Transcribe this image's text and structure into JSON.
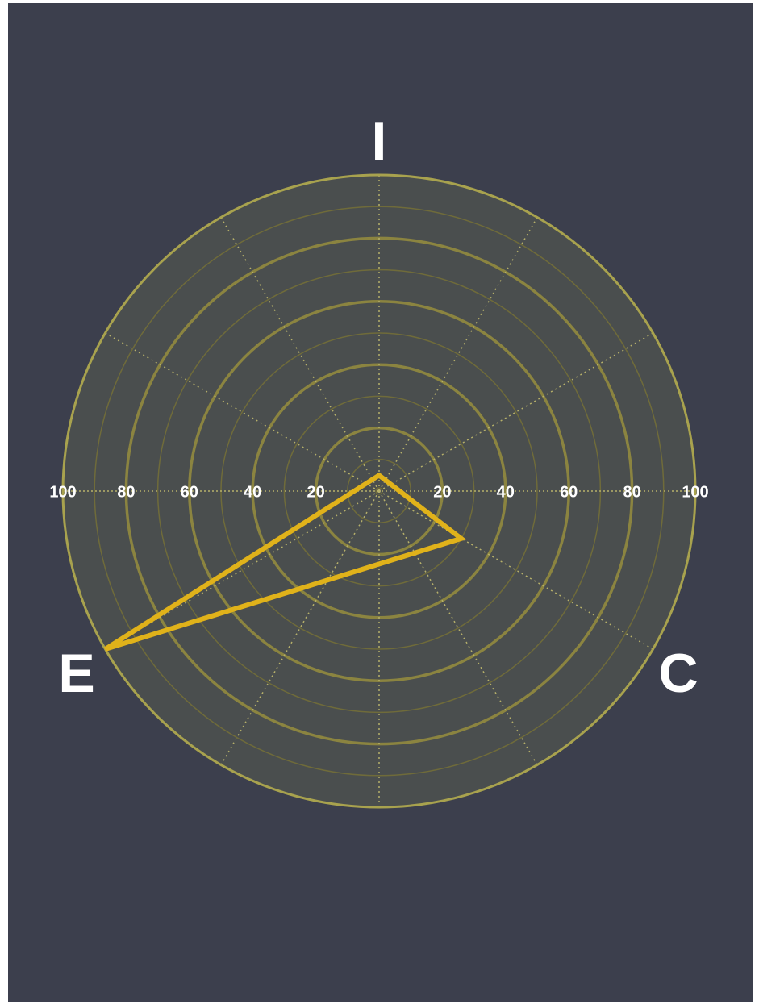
{
  "chart_data": {
    "type": "radar",
    "axes": [
      "I",
      "C",
      "E"
    ],
    "series": [
      {
        "values": [
          5,
          30,
          100
        ]
      }
    ],
    "rlim": [
      0,
      100
    ],
    "tick_labels_left": [
      "100",
      "80",
      "60",
      "40",
      "20"
    ],
    "tick_labels_right": [
      "20",
      "40",
      "60",
      "80",
      "100"
    ],
    "grid": true,
    "colors": {
      "background": "#3c3f4d",
      "plot_fill": "#4a4e4e",
      "grid_major": "#8b8440",
      "grid_minor": "#6f6b3a",
      "outer_ring": "#a8a24e",
      "spoke": "#b6b06a",
      "series_line": "#e0b21a",
      "text": "#ffffff"
    }
  }
}
